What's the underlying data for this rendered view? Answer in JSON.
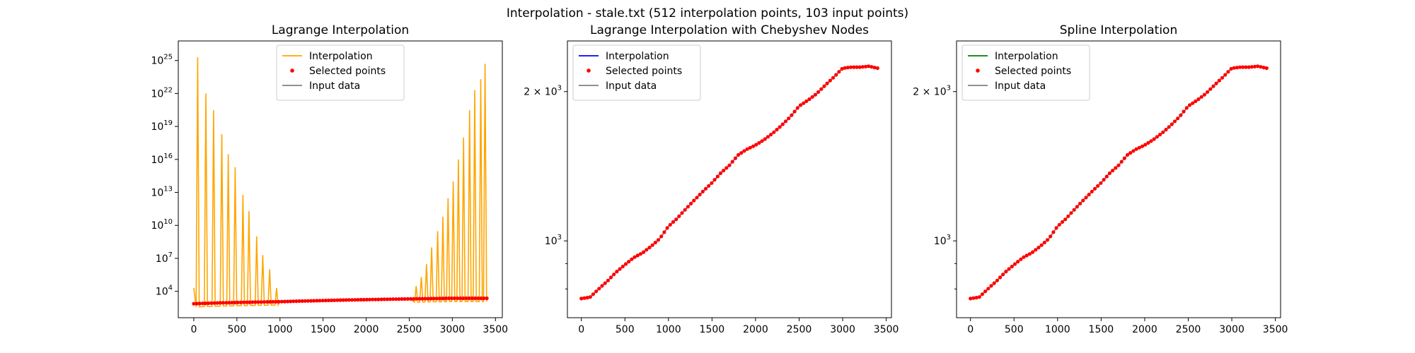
{
  "figure": {
    "title": "Interpolation - stale.txt (512 interpolation points, 103 input points)"
  },
  "chart_data": [
    {
      "type": "line",
      "title": "Lagrange Interpolation",
      "yscale": "log",
      "xlim": [
        -180,
        3580
      ],
      "ylim": [
        40,
        6e+26
      ],
      "xticks": [
        0,
        500,
        1000,
        1500,
        2000,
        2500,
        3000,
        3500
      ],
      "yticks": [
        {
          "value": 10000.0,
          "base": "10",
          "exp": "4"
        },
        {
          "value": 10000000.0,
          "base": "10",
          "exp": "7"
        },
        {
          "value": 10000000000.0,
          "base": "10",
          "exp": "10"
        },
        {
          "value": 10000000000000.0,
          "base": "10",
          "exp": "13"
        },
        {
          "value": 1e+16,
          "base": "10",
          "exp": "16"
        },
        {
          "value": 1e+19,
          "base": "10",
          "exp": "19"
        },
        {
          "value": 1e+22,
          "base": "10",
          "exp": "22"
        },
        {
          "value": 1e+25,
          "base": "10",
          "exp": "25"
        }
      ],
      "interp_color": "#ffa500",
      "grid": false,
      "legend_position": "upper center",
      "legend": [
        "Interpolation",
        "Selected points",
        "Input data"
      ],
      "input_profile": {
        "x": [
          0,
          300,
          1000,
          1800,
          2500,
          3000,
          3400
        ],
        "y": [
          750,
          900,
          1150,
          1650,
          2050,
          2350,
          2350
        ]
      },
      "selected_points_step": 34,
      "oscillation_peaks": {
        "left": [
          {
            "x": 45,
            "y": 2e+25
          },
          {
            "x": 140,
            "y": 1e+22
          },
          {
            "x": 230,
            "y": 3e+20
          },
          {
            "x": 325,
            "y": 2e+18
          },
          {
            "x": 400,
            "y": 3e+16
          },
          {
            "x": 480,
            "y": 2000000000000000.0
          },
          {
            "x": 570,
            "y": 6000000000000.0
          },
          {
            "x": 640,
            "y": 200000000000.0
          },
          {
            "x": 730,
            "y": 1000000000.0
          },
          {
            "x": 800,
            "y": 20000000.0
          },
          {
            "x": 880,
            "y": 1000000.0
          },
          {
            "x": 960,
            "y": 20000.0
          }
        ],
        "right": [
          {
            "x": 2580,
            "y": 30000.0
          },
          {
            "x": 2640,
            "y": 200000.0
          },
          {
            "x": 2700,
            "y": 3000000.0
          },
          {
            "x": 2760,
            "y": 100000000.0
          },
          {
            "x": 2830,
            "y": 3000000000.0
          },
          {
            "x": 2890,
            "y": 60000000000.0
          },
          {
            "x": 2950,
            "y": 3000000000000.0
          },
          {
            "x": 3010,
            "y": 100000000000000.0
          },
          {
            "x": 3070,
            "y": 1e+16
          },
          {
            "x": 3130,
            "y": 1e+18
          },
          {
            "x": 3200,
            "y": 3e+20
          },
          {
            "x": 3260,
            "y": 2e+22
          },
          {
            "x": 3330,
            "y": 2e+23
          },
          {
            "x": 3380,
            "y": 5e+24
          }
        ]
      }
    },
    {
      "type": "line",
      "title": "Lagrange Interpolation with Chebyshev Nodes",
      "yscale": "log",
      "xlim": [
        -160,
        3560
      ],
      "ylim": [
        700,
        2530
      ],
      "xticks": [
        0,
        500,
        1000,
        1500,
        2000,
        2500,
        3000,
        3500
      ],
      "yticks": [
        {
          "value": 1000,
          "base": "10",
          "exp": "3"
        },
        {
          "value": 2000,
          "base": "2 × 10",
          "exp": "3"
        }
      ],
      "interp_color": "#0000ff",
      "grid": false,
      "legend_position": "upper left",
      "legend": [
        "Interpolation",
        "Selected points",
        "Input data"
      ],
      "curve": {
        "x": [
          0,
          100,
          200,
          300,
          400,
          500,
          600,
          700,
          800,
          900,
          1000,
          1100,
          1200,
          1300,
          1400,
          1500,
          1600,
          1700,
          1800,
          1900,
          2000,
          2100,
          2200,
          2300,
          2400,
          2500,
          2600,
          2700,
          2800,
          2900,
          3000,
          3100,
          3200,
          3300,
          3400
        ],
        "y": [
          765,
          770,
          800,
          830,
          865,
          895,
          925,
          945,
          975,
          1010,
          1070,
          1110,
          1160,
          1210,
          1260,
          1310,
          1370,
          1420,
          1490,
          1530,
          1560,
          1600,
          1650,
          1710,
          1780,
          1870,
          1920,
          1980,
          2060,
          2140,
          2230,
          2240,
          2240,
          2250,
          2230
        ]
      }
    },
    {
      "type": "line",
      "title": "Spline Interpolation",
      "yscale": "log",
      "xlim": [
        -160,
        3560
      ],
      "ylim": [
        700,
        2530
      ],
      "xticks": [
        0,
        500,
        1000,
        1500,
        2000,
        2500,
        3000,
        3500
      ],
      "yticks": [
        {
          "value": 1000,
          "base": "10",
          "exp": "3"
        },
        {
          "value": 2000,
          "base": "2 × 10",
          "exp": "3"
        }
      ],
      "interp_color": "#008000",
      "grid": false,
      "legend_position": "upper left",
      "legend": [
        "Interpolation",
        "Selected points",
        "Input data"
      ],
      "curve": {
        "x": [
          0,
          100,
          200,
          300,
          400,
          500,
          600,
          700,
          800,
          900,
          1000,
          1100,
          1200,
          1300,
          1400,
          1500,
          1600,
          1700,
          1800,
          1900,
          2000,
          2100,
          2200,
          2300,
          2400,
          2500,
          2600,
          2700,
          2800,
          2900,
          3000,
          3100,
          3200,
          3300,
          3400
        ],
        "y": [
          765,
          770,
          800,
          830,
          865,
          895,
          925,
          945,
          975,
          1010,
          1070,
          1110,
          1160,
          1210,
          1260,
          1310,
          1370,
          1420,
          1490,
          1530,
          1560,
          1600,
          1650,
          1710,
          1780,
          1870,
          1920,
          1980,
          2060,
          2140,
          2230,
          2240,
          2240,
          2250,
          2230
        ]
      }
    }
  ]
}
